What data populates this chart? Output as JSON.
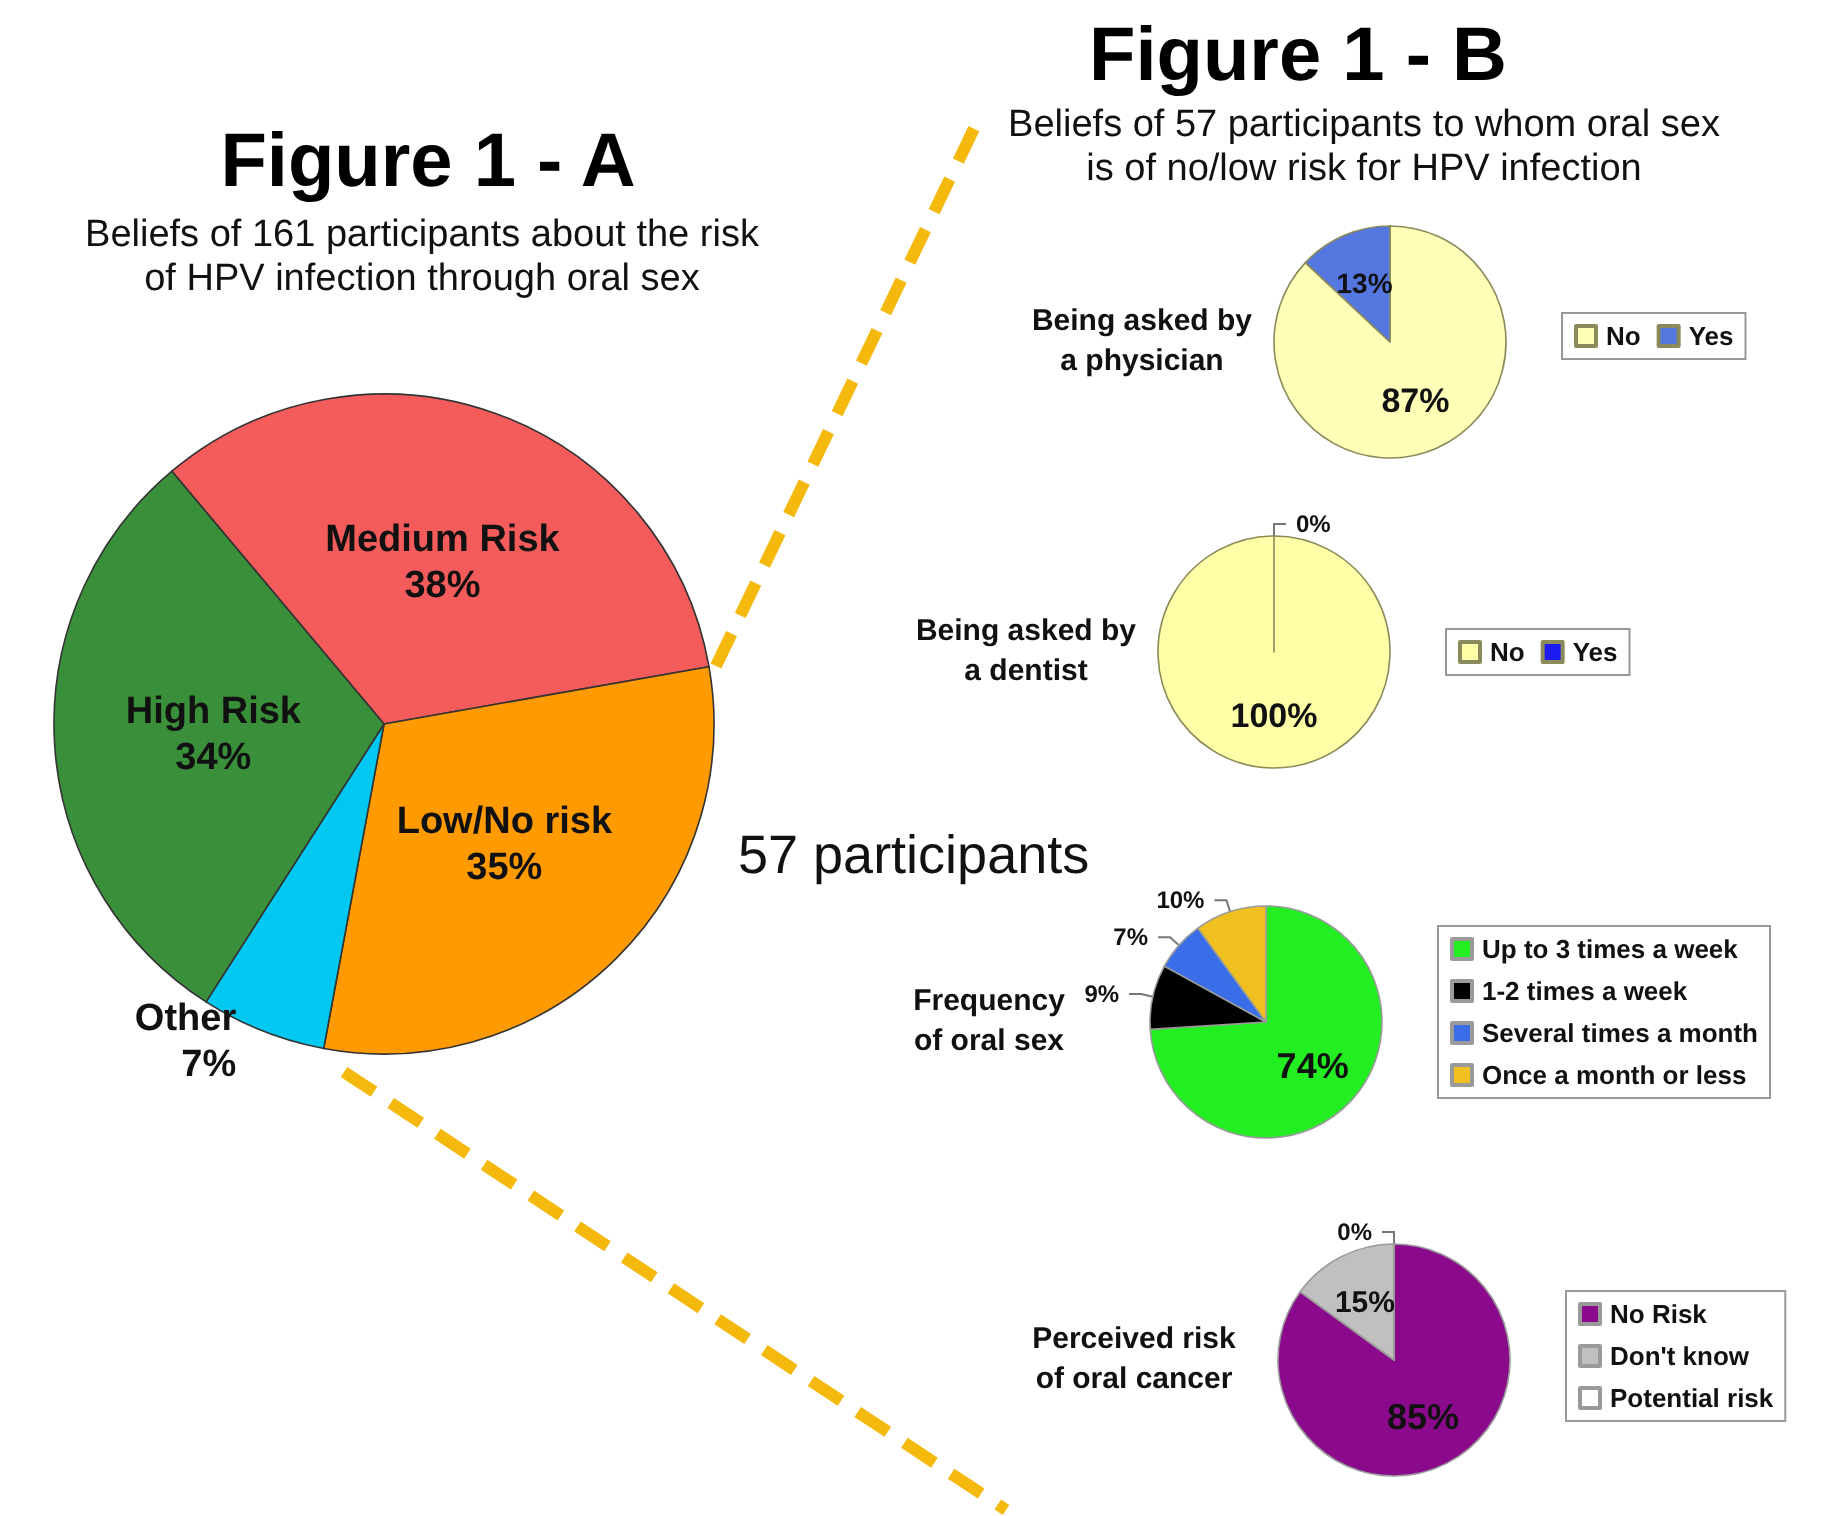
{
  "chart_data": [
    {
      "type": "pie",
      "title": "Figure 1 - A",
      "subtitle": "Beliefs of 161 participants about the risk of HPV infection through oral sex",
      "categories": [
        "Medium Risk",
        "Low/No risk",
        "Other",
        "High Risk"
      ],
      "values": [
        38,
        35,
        7,
        34
      ],
      "colors": [
        "#f45c5c",
        "#ff9a00",
        "#00c8f0",
        "#3a8f3a"
      ],
      "value_labels": [
        "38%",
        "35%",
        "7%",
        "34%"
      ],
      "annotations": [
        "57 participants"
      ]
    },
    {
      "type": "other",
      "title": "Figure 1 - B",
      "subtitle": "Beliefs of 57 participants to whom oral sex is of no/low risk for HPV infection"
    },
    {
      "type": "pie",
      "title": "Being asked by a physician",
      "categories": [
        "No",
        "Yes"
      ],
      "values": [
        87,
        13
      ],
      "colors": [
        "#ffffb8",
        "#5577e0"
      ],
      "value_labels": [
        "87%",
        "13%"
      ],
      "legend": "right"
    },
    {
      "type": "pie",
      "title": "Being asked by a dentist",
      "categories": [
        "No",
        "Yes"
      ],
      "values": [
        100,
        0
      ],
      "colors": [
        "#ffffa8",
        "#1c1cf0"
      ],
      "value_labels": [
        "100%",
        "0%"
      ],
      "legend": "right"
    },
    {
      "type": "pie",
      "title": "Frequency of oral sex",
      "categories": [
        "Up to 3 times a week",
        "1-2 times a week",
        "Several times a month",
        "Once a month or less"
      ],
      "values": [
        74,
        9,
        7,
        10
      ],
      "colors": [
        "#22ee22",
        "#000000",
        "#3a6ee8",
        "#f0c020"
      ],
      "value_labels": [
        "74%",
        "9%",
        "7%",
        "10%"
      ],
      "legend": "right"
    },
    {
      "type": "pie",
      "title": "Perceived risk of oral cancer",
      "categories": [
        "No Risk",
        "Don't know",
        "Potential risk"
      ],
      "values": [
        85,
        15,
        0
      ],
      "colors": [
        "#8b0a8b",
        "#c0c0c0",
        "#ffffff"
      ],
      "value_labels": [
        "85%",
        "15%",
        "0%"
      ],
      "legend": "right"
    }
  ]
}
